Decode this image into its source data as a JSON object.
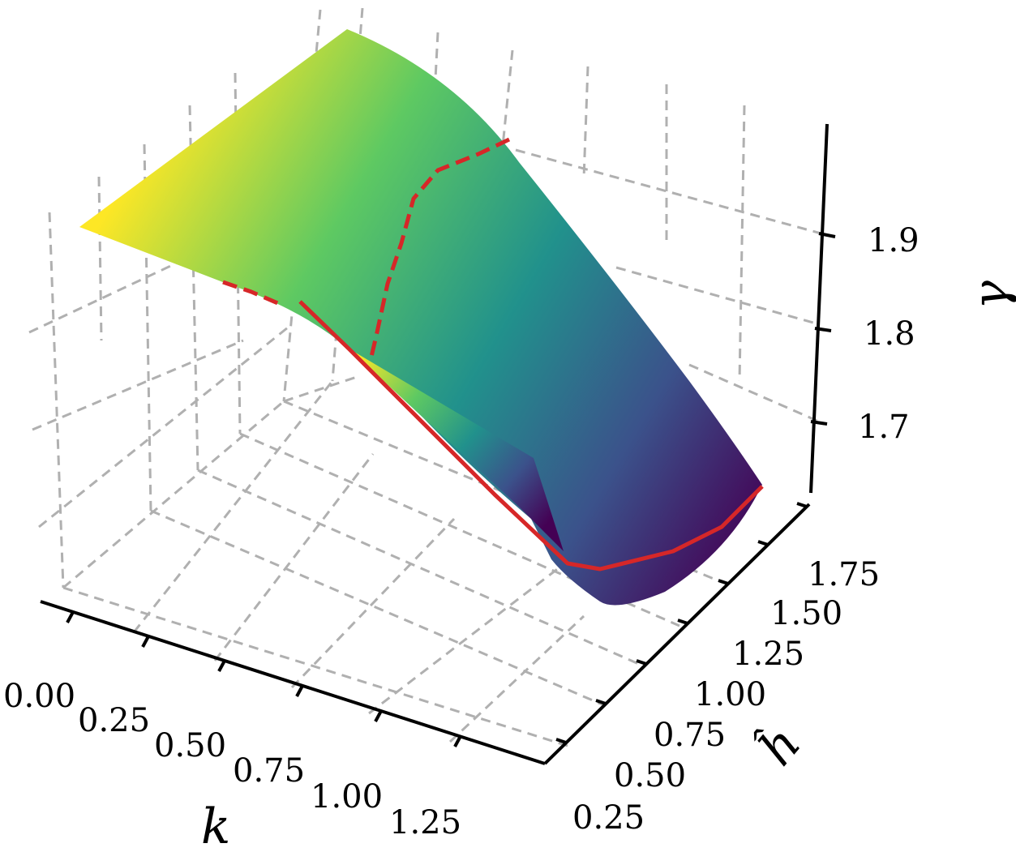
{
  "chart_data": {
    "type": "surface3d",
    "axes": {
      "x": {
        "label": "k",
        "ticks": [
          "0.00",
          "0.25",
          "0.50",
          "0.75",
          "1.00",
          "1.25"
        ],
        "range": [
          0.0,
          1.4
        ]
      },
      "y": {
        "label": "ĥ",
        "ticks": [
          "0.25",
          "0.50",
          "0.75",
          "1.00",
          "1.25",
          "1.50",
          "1.75"
        ],
        "range": [
          0.25,
          1.85
        ]
      },
      "z": {
        "label": "γ",
        "ticks": [
          "1.7",
          "1.8",
          "1.9"
        ],
        "range": [
          1.64,
          1.97
        ]
      }
    },
    "surface": {
      "colormap": "viridis",
      "colormap_stops": [
        "#440154",
        "#3b528b",
        "#21918c",
        "#5ec962",
        "#fde725"
      ],
      "corners": [
        {
          "k": 0.0,
          "h": 0.25,
          "gamma": 1.93
        },
        {
          "k": 0.0,
          "h": 1.85,
          "gamma": 1.96
        },
        {
          "k": 1.4,
          "h": 1.85,
          "gamma": 1.64
        },
        {
          "k": 1.0,
          "h": 0.25,
          "gamma": 1.74
        }
      ]
    },
    "curves": [
      {
        "style": "dashed",
        "color": "#d62728",
        "points": [
          {
            "k": 0.0,
            "h": 1.85,
            "gamma": 1.96
          },
          {
            "k": 0.2,
            "h": 1.7,
            "gamma": 1.93
          },
          {
            "k": 0.3,
            "h": 1.3,
            "gamma": 1.88
          },
          {
            "k": 0.45,
            "h": 0.85,
            "gamma": 1.83
          },
          {
            "k": 0.55,
            "h": 0.5,
            "gamma": 1.79
          }
        ]
      },
      {
        "style": "dashed",
        "color": "#d62728",
        "points": [
          {
            "k": 0.0,
            "h": 0.25,
            "gamma": 1.93
          },
          {
            "k": 0.2,
            "h": 0.3,
            "gamma": 1.87
          }
        ]
      },
      {
        "style": "solid",
        "color": "#d62728",
        "points": [
          {
            "k": 0.3,
            "h": 0.25,
            "gamma": 1.86
          },
          {
            "k": 0.55,
            "h": 0.4,
            "gamma": 1.8
          },
          {
            "k": 0.9,
            "h": 0.6,
            "gamma": 1.7
          },
          {
            "k": 1.25,
            "h": 1.0,
            "gamma": 1.64
          },
          {
            "k": 1.35,
            "h": 1.5,
            "gamma": 1.64
          },
          {
            "k": 1.4,
            "h": 1.85,
            "gamma": 1.68
          }
        ]
      }
    ]
  }
}
